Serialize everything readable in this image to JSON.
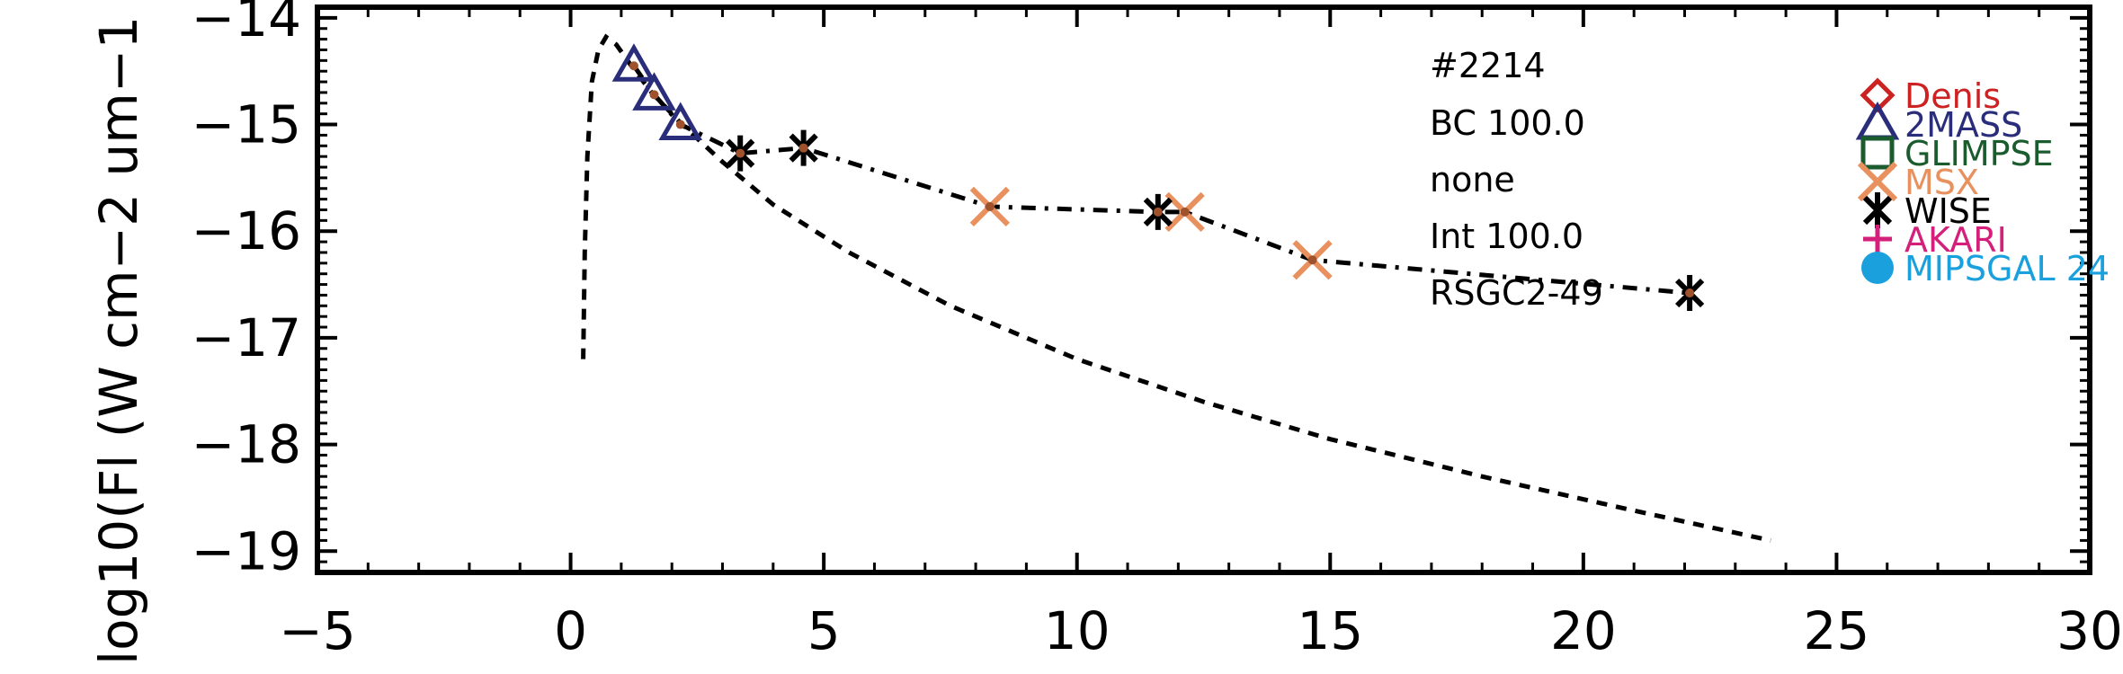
{
  "chart_data": {
    "type": "scatter",
    "xlim": [
      -5,
      30
    ],
    "ylim": [
      -19.2,
      -13.9
    ],
    "ylabel": "log10(Fl (W cm−2 um−1",
    "xlabel": "",
    "x_ticks": [
      -5,
      0,
      5,
      10,
      15,
      20,
      25,
      30
    ],
    "x_tick_labels": [
      "−5",
      "0",
      "5",
      "10",
      "15",
      "20",
      "25",
      "30"
    ],
    "y_ticks": [
      -19,
      -18,
      -17,
      -16,
      -15,
      -14
    ],
    "y_tick_labels": [
      "−19",
      "−18",
      "−17",
      "−16",
      "−15",
      "−14"
    ],
    "grid": false,
    "annotations": [
      "#2214",
      "BC 100.0",
      "none",
      "Int 100.0",
      "RSGC2-49"
    ],
    "legend": {
      "placement": "right",
      "entries": [
        {
          "name": "Denis",
          "marker": "diamond",
          "color": "#cc2222"
        },
        {
          "name": "2MASS",
          "marker": "triangle",
          "color": "#2a2e7a"
        },
        {
          "name": "GLIMPSE",
          "marker": "square",
          "color": "#1a5c2e"
        },
        {
          "name": "MSX",
          "marker": "x",
          "color": "#e8915f"
        },
        {
          "name": "WISE",
          "marker": "asterisk",
          "color": "#000000"
        },
        {
          "name": "AKARI",
          "marker": "plus",
          "color": "#d4207a"
        },
        {
          "name": "MIPSGAL 24",
          "marker": "circle",
          "color": "#1aa0dc"
        }
      ]
    },
    "series": [
      {
        "marker": "triangle",
        "color": "#2a2e7a",
        "points": [
          [
            1.25,
            -14.45
          ],
          [
            1.65,
            -14.72
          ],
          [
            2.17,
            -15.0
          ]
        ]
      },
      {
        "marker": "asterisk",
        "color": "#000000",
        "points": [
          [
            3.35,
            -15.27
          ],
          [
            4.6,
            -15.22
          ],
          [
            11.6,
            -15.82
          ],
          [
            22.1,
            -16.58
          ]
        ]
      },
      {
        "marker": "x",
        "color": "#e8915f",
        "points": [
          [
            8.28,
            -15.77
          ],
          [
            12.13,
            -15.82
          ],
          [
            14.65,
            -16.27
          ]
        ]
      },
      {
        "marker": "dot",
        "color": "#a0522d",
        "points": [
          [
            1.25,
            -14.45
          ],
          [
            1.65,
            -14.72
          ],
          [
            2.17,
            -15.0
          ],
          [
            3.35,
            -15.27
          ],
          [
            4.6,
            -15.22
          ],
          [
            8.28,
            -15.77
          ],
          [
            11.6,
            -15.82
          ],
          [
            12.13,
            -15.82
          ],
          [
            14.65,
            -16.27
          ],
          [
            22.1,
            -16.58
          ]
        ]
      },
      {
        "line": "dash-dot",
        "color": "#000000",
        "points": [
          [
            1.25,
            -14.45
          ],
          [
            1.65,
            -14.72
          ],
          [
            2.17,
            -15.0
          ],
          [
            3.35,
            -15.27
          ],
          [
            4.6,
            -15.22
          ],
          [
            8.28,
            -15.77
          ],
          [
            11.6,
            -15.82
          ],
          [
            12.13,
            -15.82
          ],
          [
            14.65,
            -16.27
          ],
          [
            22.1,
            -16.58
          ]
        ]
      },
      {
        "line": "dashed",
        "color": "#000000",
        "points": [
          [
            0.25,
            -17.2
          ],
          [
            0.28,
            -16.2
          ],
          [
            0.33,
            -15.3
          ],
          [
            0.42,
            -14.6
          ],
          [
            0.55,
            -14.3
          ],
          [
            0.7,
            -14.18
          ],
          [
            0.9,
            -14.25
          ],
          [
            1.2,
            -14.45
          ],
          [
            1.6,
            -14.7
          ],
          [
            2.2,
            -15.0
          ],
          [
            3.0,
            -15.35
          ],
          [
            4.0,
            -15.75
          ],
          [
            5.5,
            -16.2
          ],
          [
            7.5,
            -16.7
          ],
          [
            10.0,
            -17.2
          ],
          [
            12.5,
            -17.6
          ],
          [
            15.0,
            -17.95
          ],
          [
            18.0,
            -18.3
          ],
          [
            21.0,
            -18.62
          ],
          [
            23.7,
            -18.9
          ]
        ]
      }
    ]
  }
}
